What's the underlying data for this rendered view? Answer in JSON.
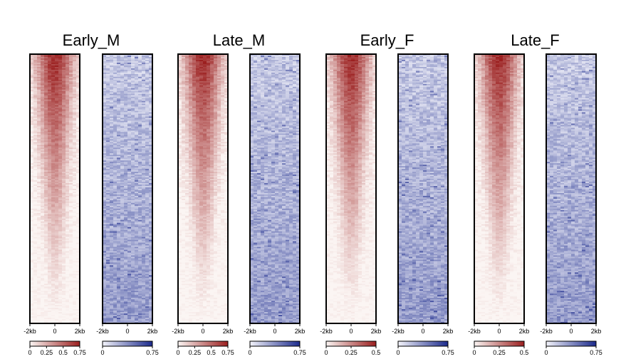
{
  "chart_data": {
    "type": "heatmap",
    "groups": [
      {
        "title": "Early_M",
        "panels": [
          {
            "color": "red",
            "xticks": [
              "-2kb",
              "0",
              "2kb"
            ],
            "colorbar_ticks": [
              "0",
              "0.25",
              "0.5",
              "0.75"
            ],
            "colorbar_range": [
              0,
              0.75
            ]
          },
          {
            "color": "blue",
            "xticks": [
              "-2kb",
              "0",
              "2kb"
            ],
            "colorbar_ticks": [
              "0",
              "0.75"
            ],
            "colorbar_range": [
              0,
              0.75
            ]
          }
        ]
      },
      {
        "title": "Late_M",
        "panels": [
          {
            "color": "red",
            "xticks": [
              "-2kb",
              "0",
              "2kb"
            ],
            "colorbar_ticks": [
              "0",
              "0.25",
              "0.5",
              "0.75"
            ],
            "colorbar_range": [
              0,
              0.75
            ]
          },
          {
            "color": "blue",
            "xticks": [
              "-2kb",
              "0",
              "2kb"
            ],
            "colorbar_ticks": [
              "0",
              "0.75"
            ],
            "colorbar_range": [
              0,
              0.75
            ]
          }
        ]
      },
      {
        "title": "Early_F",
        "panels": [
          {
            "color": "red",
            "xticks": [
              "-2kb",
              "0",
              "2kb"
            ],
            "colorbar_ticks": [
              "0",
              "0.25",
              "0.5"
            ],
            "colorbar_range": [
              0,
              0.5
            ]
          },
          {
            "color": "blue",
            "xticks": [
              "-2kb",
              "0",
              "2kb"
            ],
            "colorbar_ticks": [
              "0",
              "0.75"
            ],
            "colorbar_range": [
              0,
              0.75
            ]
          }
        ]
      },
      {
        "title": "Late_F",
        "panels": [
          {
            "color": "red",
            "xticks": [
              "-2kb",
              "0",
              "2kb"
            ],
            "colorbar_ticks": [
              "0",
              "0.25",
              "0.5"
            ],
            "colorbar_range": [
              0,
              0.5
            ]
          },
          {
            "color": "blue",
            "xticks": [
              "-2kb",
              "0",
              "2kb"
            ],
            "colorbar_ticks": [
              "0",
              "0.75"
            ],
            "colorbar_range": [
              0,
              0.75
            ]
          }
        ]
      }
    ],
    "colors": {
      "red_low": "#fbf5f3",
      "red_high": "#9b1f1f",
      "blue_low": "#f4f4fb",
      "blue_high": "#1b2a8c"
    }
  }
}
